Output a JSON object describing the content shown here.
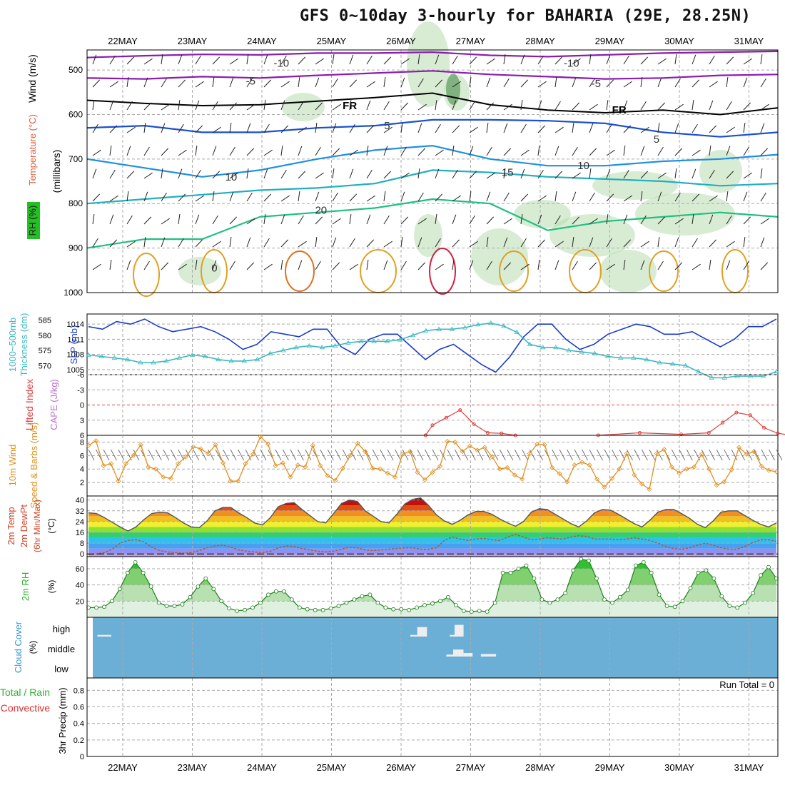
{
  "title": "GFS 0~10day 3-hourly for BAHARIA (29E, 28.25N)",
  "colors": {
    "frame": "#000000",
    "grid": "#aaaaaa",
    "slp": "#1a3cc8",
    "thickness": "#3cb8c0",
    "lifted": "#e04040",
    "wind_speed": "#e09020",
    "rh_fill": "#3cc83c",
    "cloud_bg": "#6baed6",
    "cloud_bar": "#eeeeee",
    "temp_line": "#555555",
    "dewpt_line": "#b05a3c"
  },
  "chart_data": [
    {
      "panel": "upper_air",
      "type": "contour",
      "x_labels_top": [
        "22MAY",
        "23MAY",
        "24MAY",
        "25MAY",
        "26MAY",
        "27MAY",
        "28MAY",
        "29MAY",
        "30MAY",
        "31MAY"
      ],
      "ylabel_parts": [
        "RH (%)",
        "Temperature (°C)",
        "Wind (m/s)"
      ],
      "y_unit": "(millibars)",
      "y_ticks": [
        "500",
        "600",
        "700",
        "800",
        "900",
        "1000"
      ],
      "y_values": [
        500,
        600,
        700,
        800,
        900,
        1000
      ],
      "ylim": [
        455,
        1000
      ],
      "contour_labels": [
        {
          "text": "-10",
          "x": 2.7,
          "p": 485
        },
        {
          "text": "-10",
          "x": 6.9,
          "p": 485
        },
        {
          "text": "-5",
          "x": 2.3,
          "p": 525
        },
        {
          "text": "-5",
          "x": 7.3,
          "p": 530
        },
        {
          "text": "FR",
          "x": 3.7,
          "p": 580
        },
        {
          "text": "FR",
          "x": 7.6,
          "p": 590
        },
        {
          "text": "5",
          "x": 4.3,
          "p": 625
        },
        {
          "text": "5",
          "x": 8.2,
          "p": 655
        },
        {
          "text": "10",
          "x": 2.0,
          "p": 740
        },
        {
          "text": "10",
          "x": 7.1,
          "p": 715
        },
        {
          "text": "15",
          "x": 6.0,
          "p": 730
        },
        {
          "text": "20",
          "x": 3.3,
          "p": 815
        },
        {
          "text": "0",
          "x": 1.8,
          "p": 945
        }
      ],
      "isotherms": [
        {
          "label": "-10",
          "color": "#8a1cb0",
          "p": [
            472,
            468,
            465,
            466,
            462,
            462,
            460,
            467,
            470,
            466,
            462,
            460,
            458
          ]
        },
        {
          "label": "-5",
          "color": "#8a1cb0",
          "p": [
            518,
            520,
            515,
            518,
            512,
            507,
            502,
            510,
            515,
            520,
            518,
            512,
            510
          ]
        },
        {
          "label": "FR",
          "color": "#000000",
          "p": [
            568,
            575,
            580,
            578,
            570,
            562,
            552,
            578,
            590,
            596,
            590,
            600,
            585
          ]
        },
        {
          "label": "5",
          "color": "#1a50d0",
          "p": [
            630,
            625,
            640,
            640,
            630,
            625,
            612,
            612,
            614,
            620,
            640,
            650,
            640
          ]
        },
        {
          "label": "10",
          "color": "#2090e0",
          "p": [
            700,
            720,
            740,
            725,
            700,
            680,
            670,
            700,
            715,
            715,
            705,
            700,
            690
          ]
        },
        {
          "label": "15",
          "color": "#20b0c0",
          "p": [
            800,
            790,
            780,
            770,
            765,
            755,
            725,
            730,
            740,
            745,
            750,
            760,
            755
          ]
        },
        {
          "label": "20",
          "color": "#20c080",
          "p": [
            900,
            880,
            880,
            830,
            820,
            810,
            790,
            800,
            860,
            840,
            830,
            820,
            830
          ]
        }
      ]
    },
    {
      "panel": "slp_thickness",
      "type": "line",
      "ylabel_left": [
        "1000~500mb",
        "Thickness (dm)"
      ],
      "ylabel_right": "SLP (mb)",
      "left_ticks": [
        "585",
        "580",
        "575",
        "570"
      ],
      "right_ticks": [
        "1014",
        "1011",
        "1008",
        "1005"
      ],
      "series": [
        {
          "name": "SLP (mb)",
          "axis": "right",
          "values": [
            1013.5,
            1013.0,
            1014.5,
            1014.0,
            1015.0,
            1013.5,
            1012.5,
            1013.0,
            1013.5,
            1012.5,
            1011.0,
            1009.0,
            1010.0,
            1012.5,
            1012.0,
            1011.5,
            1013.0,
            1013.0,
            1009.5,
            1008.0,
            1011.0,
            1012.0,
            1012.0,
            1009.5,
            1007.0,
            1009.0,
            1010.0,
            1008.0,
            1006.0,
            1004.5,
            1007.5,
            1011.5,
            1014.0,
            1014.0,
            1011.0,
            1009.0,
            1010.0,
            1012.0,
            1013.0,
            1014.0,
            1013.5,
            1012.0,
            1012.0,
            1012.5,
            1011.0,
            1009.5,
            1011.0,
            1013.5,
            1013.5,
            1015.0
          ]
        },
        {
          "name": "1000~500mb Thickness (dm)",
          "axis": "left",
          "values": [
            573.5,
            573.0,
            572.5,
            572.0,
            571.0,
            571.0,
            571.5,
            572.5,
            573.5,
            573.0,
            572.0,
            571.5,
            571.5,
            572.0,
            574.0,
            575.0,
            576.0,
            576.5,
            576.0,
            576.5,
            577.5,
            578.0,
            578.0,
            578.0,
            578.5,
            580.0,
            581.5,
            582.0,
            582.0,
            582.5,
            583.5,
            584.0,
            583.0,
            581.0,
            577.0,
            576.0,
            576.0,
            575.0,
            574.5,
            574.0,
            573.0,
            572.5,
            572.5,
            572.0,
            571.0,
            570.5,
            570.0,
            568.0,
            566.0,
            566.0,
            566.5,
            566.5,
            566.5,
            568.0
          ]
        }
      ],
      "ylim_left": [
        567,
        587
      ],
      "ylim_right": [
        1004,
        1016
      ]
    },
    {
      "panel": "lifted_cape",
      "type": "line",
      "ylabel": [
        "Lifted Index",
        "CAPE (J/kg)"
      ],
      "y_ticks": [
        "-6",
        "-3",
        "0",
        "3",
        "6"
      ],
      "ylim": [
        -6,
        6
      ],
      "series": [
        {
          "name": "Lifted Index",
          "values": [
            [
              4.9,
              6
            ],
            [
              5.0,
              4
            ],
            [
              5.2,
              2.5
            ],
            [
              5.4,
              1.0
            ],
            [
              5.6,
              3.8
            ],
            [
              5.8,
              5.5
            ],
            [
              6.0,
              5.6
            ],
            [
              6.2,
              6.0
            ],
            [
              7.4,
              6.0
            ],
            [
              8.0,
              5.5
            ],
            [
              8.6,
              5.8
            ],
            [
              9.0,
              5.5
            ],
            [
              9.2,
              3.5
            ],
            [
              9.4,
              1.5
            ],
            [
              9.6,
              2.0
            ],
            [
              9.8,
              4.5
            ],
            [
              10.0,
              5.6
            ],
            [
              10.2,
              6.0
            ]
          ]
        }
      ],
      "reference_zero": true
    },
    {
      "panel": "wind_10m",
      "type": "line",
      "ylabel": [
        "10m Wind",
        "Speed & Barbs (m/s)"
      ],
      "y_ticks": [
        "8",
        "6",
        "4",
        "2"
      ],
      "ylim": [
        0,
        9
      ],
      "series": [
        {
          "name": "10m Wind Speed",
          "values": [
            7.5,
            8.2,
            4.5,
            4.8,
            2.2,
            4.8,
            6.0,
            7.6,
            4.3,
            4.0,
            2.8,
            2.6,
            4.8,
            5.8,
            7.3,
            7.0,
            6.3,
            7.6,
            4.9,
            2.2,
            2.2,
            4.8,
            6.2,
            8.8,
            7.7,
            4.5,
            4.9,
            2.8,
            4.6,
            4.3,
            7.5,
            4.5,
            3.0,
            2.3,
            4.1,
            6.0,
            7.8,
            6.6,
            4.1,
            4.0,
            3.4,
            2.8,
            6.2,
            6.6,
            3.5,
            2.4,
            3.5,
            4.4,
            8.1,
            8.0,
            6.6,
            7.4,
            6.8,
            7.2,
            5.8,
            4.0,
            4.2,
            3.1,
            2.5,
            6.3,
            7.7,
            7.6,
            4.2,
            3.3,
            2.1,
            4.6,
            5.0,
            4.6,
            2.5,
            1.3,
            2.6,
            4.0,
            6.3,
            3.1,
            1.8,
            1.0,
            6.3,
            6.9,
            4.3,
            3.4,
            4.0,
            4.3,
            6.2,
            4.0,
            1.6,
            2.1,
            3.9,
            7.2,
            6.2,
            6.6,
            4.4,
            3.8,
            3.6
          ]
        }
      ]
    },
    {
      "panel": "temperature",
      "type": "area",
      "ylabel": [
        "2m Temp",
        "2m DewPt",
        "(6hr Min/Max)",
        "(°C)"
      ],
      "y_ticks": [
        "40",
        "32",
        "24",
        "16",
        "8",
        "0"
      ],
      "ylim": [
        -2,
        43
      ],
      "series": [
        {
          "name": "2m Temp",
          "values": [
            30.5,
            30.0,
            27.0,
            23.5,
            20.0,
            17.0,
            20.0,
            25.5,
            30.0,
            31.0,
            30.5,
            27.0,
            23.0,
            20.0,
            19.5,
            24.5,
            32.0,
            34.5,
            34.5,
            30.5,
            27.0,
            23.0,
            21.5,
            27.0,
            35.0,
            37.5,
            38.0,
            33.0,
            28.5,
            24.0,
            23.0,
            30.0,
            37.5,
            40.0,
            39.0,
            32.0,
            28.0,
            24.0,
            23.0,
            29.5,
            37.0,
            40.5,
            41.5,
            36.0,
            29.0,
            24.5,
            22.0,
            25.0,
            29.0,
            31.5,
            31.5,
            29.5,
            26.0,
            23.0,
            20.5,
            24.0,
            31.0,
            33.5,
            33.0,
            29.5,
            26.0,
            22.5,
            20.0,
            24.5,
            30.5,
            33.0,
            32.5,
            29.5,
            26.0,
            22.5,
            20.0,
            25.0,
            31.0,
            33.0,
            33.0,
            30.0,
            26.5,
            22.0,
            19.5,
            24.5,
            31.0,
            32.0,
            32.0,
            28.5,
            25.0,
            22.0,
            20.0,
            23.0
          ]
        },
        {
          "name": "2m DewPt",
          "values": [
            -0.5,
            0.0,
            1.0,
            3.5,
            8.0,
            10.0,
            10.5,
            9.0,
            5.0,
            2.5,
            1.5,
            1.0,
            0.5,
            1.0,
            2.5,
            4.5,
            6.0,
            6.5,
            5.0,
            3.0,
            2.0,
            1.5,
            1.0,
            2.0,
            4.5,
            6.0,
            5.5,
            4.0,
            3.0,
            2.0,
            1.5,
            2.0,
            3.5,
            5.0,
            4.5,
            3.0,
            2.5,
            3.0,
            3.5,
            4.0,
            4.5,
            4.5,
            3.5,
            3.5,
            4.5,
            10.0,
            12.5,
            11.0,
            10.0,
            11.0,
            11.5,
            10.5,
            10.0,
            12.5,
            14.5,
            12.5,
            10.5,
            11.0,
            12.0,
            11.5,
            11.0,
            12.5,
            13.5,
            13.0,
            11.0,
            11.0,
            11.0,
            10.5,
            11.0,
            12.0,
            11.0,
            10.0,
            8.0,
            5.5,
            4.0,
            3.5,
            4.5,
            6.5,
            8.0,
            6.5,
            4.5,
            3.5,
            3.5,
            5.5,
            8.5,
            10.5,
            10.5,
            9.5
          ]
        }
      ]
    },
    {
      "panel": "rh_2m",
      "type": "area",
      "ylabel": [
        "2m RH",
        "(%)"
      ],
      "y_ticks": [
        "60",
        "40",
        "20"
      ],
      "ylim": [
        0,
        75
      ],
      "series": [
        {
          "name": "2m RH",
          "values": [
            12,
            12,
            13,
            20,
            35,
            55,
            68,
            55,
            38,
            18,
            14,
            14,
            16,
            25,
            38,
            48,
            35,
            20,
            11,
            8,
            9,
            12,
            18,
            28,
            32,
            32,
            22,
            12,
            10,
            9,
            9,
            11,
            14,
            18,
            22,
            26,
            28,
            18,
            12,
            10,
            10,
            9,
            12,
            15,
            17,
            20,
            25,
            15,
            8,
            7,
            8,
            7,
            18,
            55,
            55,
            60,
            64,
            48,
            22,
            18,
            22,
            30,
            58,
            72,
            70,
            48,
            22,
            18,
            25,
            34,
            64,
            68,
            55,
            28,
            14,
            13,
            20,
            36,
            55,
            58,
            48,
            26,
            14,
            12,
            18,
            30,
            52,
            62,
            48
          ]
        }
      ]
    },
    {
      "panel": "cloud_cover",
      "type": "bar",
      "ylabel": [
        "Cloud Cover",
        "(%)"
      ],
      "levels": [
        "high",
        "middle",
        "low"
      ],
      "series": [
        {
          "name": "high",
          "values": [
            [
              0.15,
              0.35,
              6
            ],
            [
              4.68,
              4.78,
              6
            ],
            [
              4.78,
              4.92,
              56
            ],
            [
              5.25,
              5.32,
              6
            ],
            [
              5.32,
              5.45,
              70
            ]
          ]
        },
        {
          "name": "middle",
          "values": [
            [
              5.2,
              5.3,
              8
            ],
            [
              5.3,
              5.45,
              40
            ],
            [
              5.45,
              5.58,
              18
            ],
            [
              5.7,
              5.92,
              12
            ]
          ]
        }
      ]
    },
    {
      "panel": "precip",
      "type": "bar",
      "ylabel": [
        "Total / Rain",
        "Convective",
        "3hr Precip (mm)"
      ],
      "y_ticks": [
        "0.8",
        "0.6",
        "0.4",
        "0.2",
        "0"
      ],
      "ylim": [
        0,
        0.95
      ],
      "x_labels_bottom": [
        "22MAY",
        "23MAY",
        "24MAY",
        "25MAY",
        "26MAY",
        "27MAY",
        "28MAY",
        "29MAY",
        "30MAY",
        "31MAY"
      ],
      "run_total": "Run Total = 0",
      "series": [
        {
          "name": "3hr Precip",
          "values": []
        }
      ]
    }
  ]
}
